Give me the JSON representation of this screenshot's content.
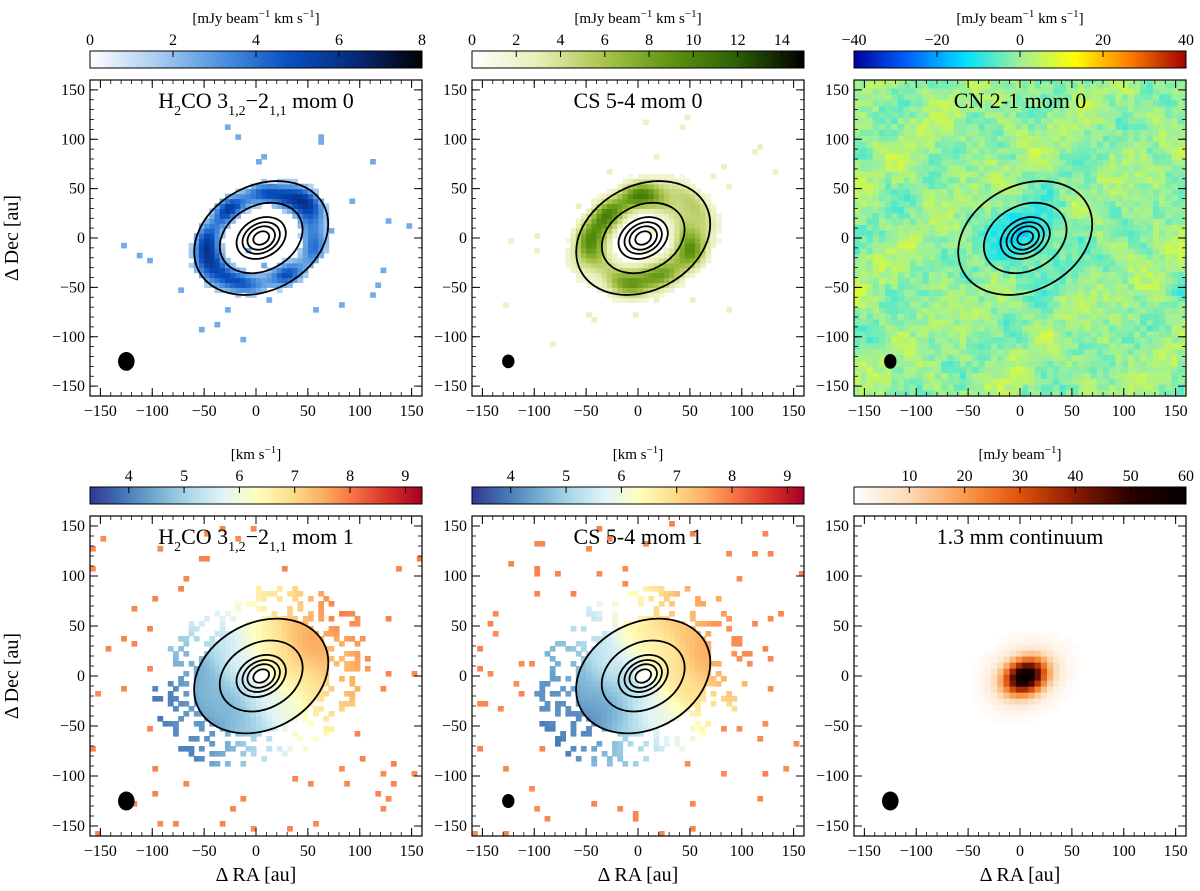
{
  "chart_data": [
    {
      "id": "p1",
      "type": "heatmap",
      "title": "H2CO 3_{1,2}-2_{1,1} mom 0",
      "title_parts": {
        "main": "H",
        "s1": "2",
        "mid": "CO 3",
        "s2": "1,2",
        "dash": "−2",
        "s3": "1,1",
        "end": " mom 0"
      },
      "colorbar_label": "[mJy beam⁻¹ km s⁻¹]",
      "colorbar_unit_parts": {
        "a": "[mJy beam",
        "b": "−1",
        "c": " km s",
        "d": "−1",
        "e": "]"
      },
      "colorbar_range": [
        0,
        8
      ],
      "colorbar_ticks": [
        0,
        2,
        4,
        6,
        8
      ],
      "colormap": [
        "#ffffff",
        "#a9cdf2",
        "#4b91de",
        "#0a4fc0",
        "#062a7a",
        "#000000"
      ],
      "xlim": [
        -160,
        160
      ],
      "ylim": [
        -160,
        160
      ],
      "xticks": [
        -150,
        -100,
        -50,
        0,
        50,
        100,
        150
      ],
      "yticks": [
        -150,
        -100,
        -50,
        0,
        50,
        100,
        150
      ],
      "xlabel": "",
      "ylabel": "Δ Dec [au]",
      "emission": "ring",
      "ring_radius_au": 55,
      "ring_width_au": 15,
      "peak": 6.5,
      "contours_au": [
        8,
        14,
        19,
        25,
        42,
        68
      ],
      "beam_au": {
        "x": -125,
        "y": -125,
        "major": 16,
        "minor": 19
      }
    },
    {
      "id": "p2",
      "type": "heatmap",
      "title": "CS 5-4 mom 0",
      "colorbar_label": "[mJy beam⁻¹ km s⁻¹]",
      "colorbar_unit_parts": {
        "a": "[mJy beam",
        "b": "−1",
        "c": " km s",
        "d": "−1",
        "e": "]"
      },
      "colorbar_range": [
        0,
        15
      ],
      "colorbar_ticks": [
        0,
        2,
        4,
        6,
        8,
        10,
        12,
        14
      ],
      "colormap": [
        "#ffffff",
        "#e8eeb6",
        "#a8c44a",
        "#5f9410",
        "#2b5e06",
        "#000000"
      ],
      "xlim": [
        -160,
        160
      ],
      "ylim": [
        -160,
        160
      ],
      "xticks": [
        -150,
        -100,
        -50,
        0,
        50,
        100,
        150
      ],
      "yticks": [
        -150,
        -100,
        -50,
        0,
        50,
        100,
        150
      ],
      "xlabel": "",
      "ylabel": "",
      "emission": "ring",
      "ring_radius_au": 52,
      "ring_width_au": 20,
      "peak": 9.5,
      "contours_au": [
        8,
        14,
        19,
        25,
        42,
        68
      ],
      "beam_au": {
        "x": -125,
        "y": -125,
        "major": 12,
        "minor": 14
      }
    },
    {
      "id": "p3",
      "type": "heatmap",
      "title": "CN 2-1 mom 0",
      "colorbar_label": "[mJy beam⁻¹ km s⁻¹]",
      "colorbar_unit_parts": {
        "a": "[mJy beam",
        "b": "−1",
        "c": " km s",
        "d": "−1",
        "e": "]"
      },
      "colorbar_range": [
        -40,
        40
      ],
      "colorbar_ticks": [
        -40,
        -20,
        0,
        20,
        40
      ],
      "colormap": [
        "#0000a0",
        "#0066ff",
        "#00e0ff",
        "#9ff09a",
        "#ffff00",
        "#ff7a00",
        "#a00000"
      ],
      "xlim": [
        -160,
        160
      ],
      "ylim": [
        -160,
        160
      ],
      "xticks": [
        -150,
        -100,
        -50,
        0,
        50,
        100,
        150
      ],
      "yticks": [
        -150,
        -100,
        -50,
        0,
        50,
        100,
        150
      ],
      "xlabel": "",
      "ylabel": "",
      "emission": "noise_absorption",
      "peak": -12,
      "contours_au": [
        8,
        14,
        19,
        25,
        42,
        68
      ],
      "beam_au": {
        "x": -125,
        "y": -125,
        "major": 12,
        "minor": 15
      }
    },
    {
      "id": "p4",
      "type": "heatmap",
      "title": "H2CO 3_{1,2}-2_{1,1} mom 1",
      "title_parts": {
        "main": "H",
        "s1": "2",
        "mid": "CO 3",
        "s2": "1,2",
        "dash": "−2",
        "s3": "1,1",
        "end": " mom 1"
      },
      "colorbar_label": "[km s⁻¹]",
      "colorbar_unit_parts": {
        "a": "[km s",
        "b": "−1",
        "c": "]"
      },
      "colorbar_range": [
        3.3,
        9.3
      ],
      "colorbar_ticks": [
        4,
        5,
        6,
        7,
        8,
        9
      ],
      "colormap": [
        "#313695",
        "#4575b4",
        "#74add1",
        "#abd9e9",
        "#e0f3f8",
        "#ffffbf",
        "#fee090",
        "#fdae61",
        "#f46d43",
        "#d73027",
        "#a50026"
      ],
      "xlim": [
        -160,
        160
      ],
      "ylim": [
        -160,
        160
      ],
      "xticks": [
        -150,
        -100,
        -50,
        0,
        50,
        100,
        150
      ],
      "yticks": [
        -150,
        -100,
        -50,
        0,
        50,
        100,
        150
      ],
      "xlabel": "Δ RA [au]",
      "ylabel": "Δ Dec [au]",
      "emission": "velocity",
      "v_sys": 5.9,
      "v_grad": 0.7,
      "contours_au": [
        8,
        14,
        19,
        25,
        42,
        68
      ],
      "beam_au": {
        "x": -125,
        "y": -125,
        "major": 16,
        "minor": 19
      }
    },
    {
      "id": "p5",
      "type": "heatmap",
      "title": "CS 5-4 mom 1",
      "colorbar_label": "[km s⁻¹]",
      "colorbar_unit_parts": {
        "a": "[km s",
        "b": "−1",
        "c": "]"
      },
      "colorbar_range": [
        3.3,
        9.3
      ],
      "colorbar_ticks": [
        4,
        5,
        6,
        7,
        8,
        9
      ],
      "colormap": [
        "#313695",
        "#4575b4",
        "#74add1",
        "#abd9e9",
        "#e0f3f8",
        "#ffffbf",
        "#fee090",
        "#fdae61",
        "#f46d43",
        "#d73027",
        "#a50026"
      ],
      "xlim": [
        -160,
        160
      ],
      "ylim": [
        -160,
        160
      ],
      "xticks": [
        -150,
        -100,
        -50,
        0,
        50,
        100,
        150
      ],
      "yticks": [
        -150,
        -100,
        -50,
        0,
        50,
        100,
        150
      ],
      "xlabel": "Δ RA [au]",
      "ylabel": "",
      "emission": "velocity",
      "v_sys": 5.9,
      "v_grad": 0.7,
      "contours_au": [
        8,
        14,
        19,
        25,
        42,
        68
      ],
      "beam_au": {
        "x": -125,
        "y": -125,
        "major": 12,
        "minor": 14
      }
    },
    {
      "id": "p6",
      "type": "heatmap",
      "title": "1.3 mm continuum",
      "colorbar_label": "[mJy beam⁻¹]",
      "colorbar_unit_parts": {
        "a": "[mJy beam",
        "b": "−1",
        "c": "]"
      },
      "colorbar_range": [
        0,
        60
      ],
      "colorbar_ticks": [
        10,
        20,
        30,
        40,
        50,
        60
      ],
      "colormap": [
        "#ffffff",
        "#fdd9b5",
        "#fa9a4c",
        "#e0520a",
        "#8a1a02",
        "#2a0000",
        "#000000"
      ],
      "xlim": [
        -160,
        160
      ],
      "ylim": [
        -160,
        160
      ],
      "xticks": [
        -150,
        -100,
        -50,
        0,
        50,
        100,
        150
      ],
      "yticks": [
        -150,
        -100,
        -50,
        0,
        50,
        100,
        150
      ],
      "xlabel": "Δ RA [au]",
      "ylabel": "",
      "emission": "continuum",
      "peak": 58,
      "contours_au": [],
      "beam_au": {
        "x": -125,
        "y": -125,
        "major": 16,
        "minor": 19
      }
    }
  ]
}
